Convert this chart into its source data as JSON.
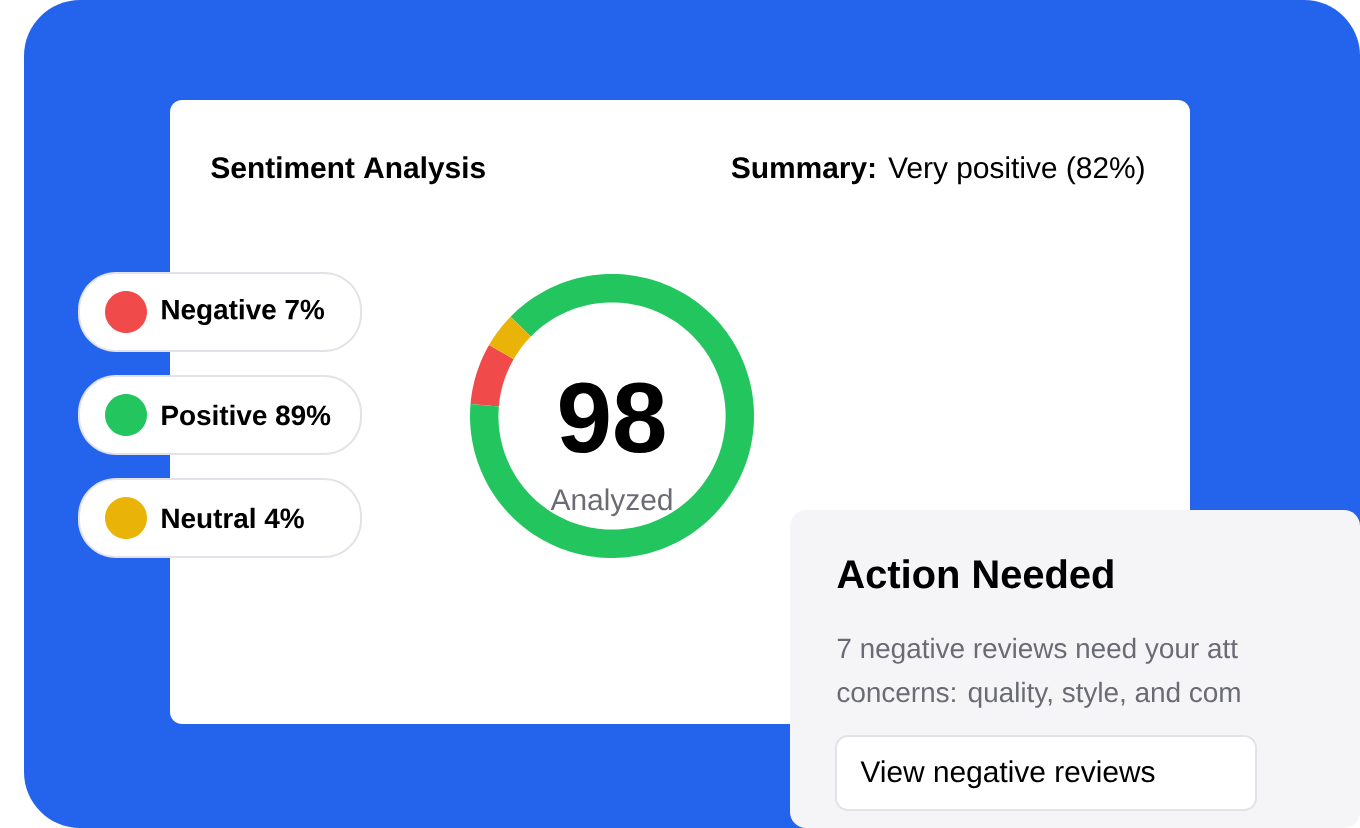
{
  "chart_data": {
    "type": "donut",
    "title": "Sentiment Analysis",
    "subtitle": "**Summary:** Very positive (82%)",
    "categories": [
      "Negative",
      "Positive",
      "Neutral"
    ],
    "values": [
      7,
      89,
      4
    ],
    "value_labels": [
      "7%",
      "89%",
      "4%"
    ],
    "colors": [
      "#f04a4a",
      "#22c55e",
      "#eab308"
    ],
    "legend": "left",
    "annotations": [
      "98",
      "Analyzed",
      "Action Needed",
      "7 negative reviews need your att",
      "concerns: quality, style, and com",
      "View negative reviews"
    ]
  }
}
